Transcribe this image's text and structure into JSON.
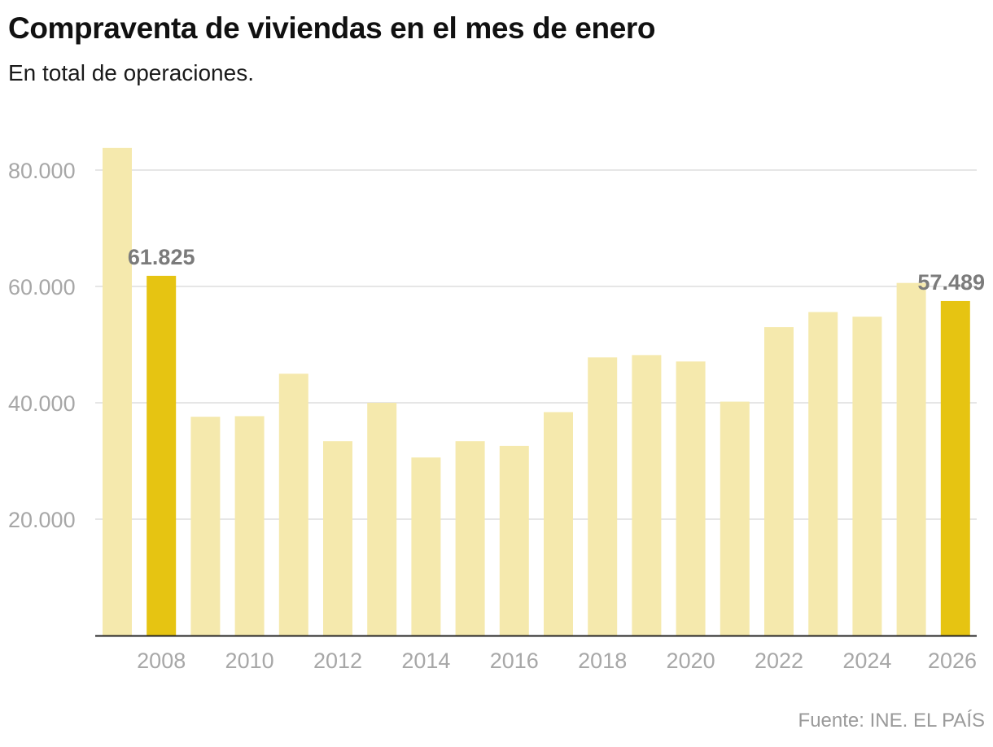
{
  "header": {
    "title": "Compraventa de viviendas en el mes de enero",
    "subtitle": "En total de operaciones."
  },
  "source": "Fuente: INE. EL PAÍS",
  "colors": {
    "bar": "#f5e9ad",
    "highlight": "#e6c412",
    "grid": "#dddddd",
    "axis": "#222222",
    "tick_text": "#a7a7a7",
    "label_text": "#7b7b7b"
  },
  "chart_data": {
    "type": "bar",
    "title": "Compraventa de viviendas en el mes de enero",
    "subtitle": "En total de operaciones.",
    "xlabel": "",
    "ylabel": "",
    "ylim": [
      0,
      88000
    ],
    "yticks": [
      20000,
      40000,
      60000,
      80000
    ],
    "ytick_labels": [
      "20.000",
      "40.000",
      "60.000",
      "80.000"
    ],
    "xtick_labels": [
      "2008",
      "2010",
      "2012",
      "2014",
      "2016",
      "2018",
      "2020",
      "2022",
      "2024",
      "2026"
    ],
    "categories": [
      "2007",
      "2008",
      "2009",
      "2010",
      "2011",
      "2012",
      "2013",
      "2014",
      "2015",
      "2016",
      "2017",
      "2018",
      "2019",
      "2020",
      "2021",
      "2022",
      "2023",
      "2024",
      "2025",
      "2026"
    ],
    "values": [
      83800,
      61825,
      37600,
      37700,
      45000,
      33400,
      40000,
      30600,
      33400,
      32600,
      38400,
      47800,
      48200,
      47100,
      40200,
      53000,
      55600,
      54800,
      60600,
      57489
    ],
    "highlighted": [
      "2008",
      "2026"
    ],
    "annotations": [
      {
        "category": "2008",
        "label": "61.825"
      },
      {
        "category": "2026",
        "label": "57.489"
      }
    ],
    "grid": true
  }
}
